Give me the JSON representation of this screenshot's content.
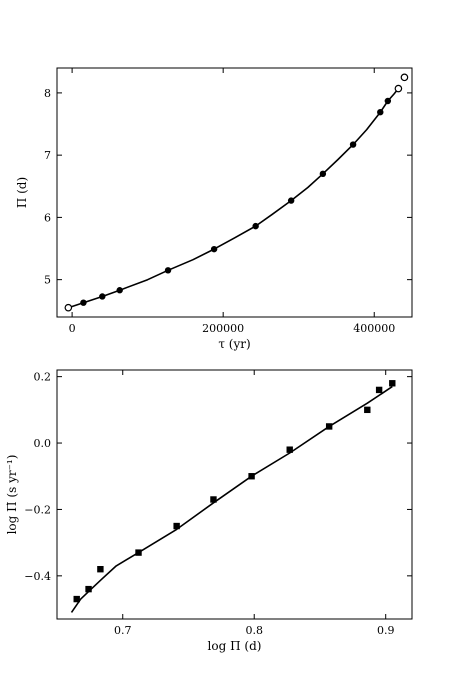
{
  "chart_data": [
    {
      "type": "scatter",
      "xlabel": "τ (yr)",
      "ylabel": "Π (d)",
      "xlim": [
        -20000,
        450000
      ],
      "ylim": [
        4.4,
        8.4
      ],
      "xticks": [
        0,
        200000,
        400000
      ],
      "xtick_labels": [
        "0",
        "200000",
        "400000"
      ],
      "yticks": [
        5,
        6,
        7,
        8
      ],
      "ytick_labels": [
        "5",
        "6",
        "7",
        "8"
      ],
      "grid": false,
      "series": [
        {
          "marker": "filled-circle",
          "x": [
            15000,
            40000,
            63000,
            127000,
            188000,
            243000,
            290000,
            332000,
            372000,
            408000,
            418000
          ],
          "y": [
            4.63,
            4.73,
            4.83,
            5.15,
            5.49,
            5.86,
            6.27,
            6.7,
            7.17,
            7.69,
            7.87
          ]
        },
        {
          "marker": "open-circle",
          "x": [
            -5000,
            432000,
            440000
          ],
          "y": [
            4.55,
            8.07,
            8.25
          ]
        },
        {
          "marker": "line",
          "x": [
            -5000,
            15000,
            40000,
            63000,
            100000,
            127000,
            160000,
            188000,
            215000,
            243000,
            265000,
            290000,
            312000,
            332000,
            352000,
            372000,
            390000,
            408000,
            418000,
            426000,
            432000
          ],
          "y": [
            4.55,
            4.63,
            4.73,
            4.83,
            5.0,
            5.15,
            5.32,
            5.49,
            5.67,
            5.86,
            6.05,
            6.27,
            6.48,
            6.7,
            6.93,
            7.17,
            7.41,
            7.69,
            7.87,
            7.98,
            8.07
          ]
        }
      ]
    },
    {
      "type": "scatter",
      "xlabel": "log Π (d)",
      "ylabel": "log Π̇ (s yr⁻¹)",
      "xlim": [
        0.65,
        0.92
      ],
      "ylim": [
        -0.53,
        0.22
      ],
      "xticks": [
        0.7,
        0.8,
        0.9
      ],
      "xtick_labels": [
        "0.7",
        "0.8",
        "0.9"
      ],
      "yticks": [
        -0.4,
        -0.2,
        0.0,
        0.2
      ],
      "ytick_labels": [
        "−0.4",
        "−0.2",
        "0.0",
        "0.2"
      ],
      "grid": false,
      "series": [
        {
          "marker": "filled-square",
          "x": [
            0.665,
            0.674,
            0.683,
            0.712,
            0.741,
            0.769,
            0.798,
            0.827,
            0.857,
            0.886,
            0.895,
            0.905
          ],
          "y": [
            -0.47,
            -0.44,
            -0.38,
            -0.33,
            -0.25,
            -0.17,
            -0.1,
            -0.02,
            0.05,
            0.1,
            0.16,
            0.18
          ]
        },
        {
          "marker": "line",
          "x": [
            0.661,
            0.668,
            0.676,
            0.684,
            0.695,
            0.712,
            0.741,
            0.769,
            0.798,
            0.827,
            0.857,
            0.886,
            0.905
          ],
          "y": [
            -0.51,
            -0.47,
            -0.44,
            -0.41,
            -0.37,
            -0.33,
            -0.26,
            -0.18,
            -0.1,
            -0.03,
            0.05,
            0.12,
            0.17
          ]
        }
      ]
    }
  ]
}
